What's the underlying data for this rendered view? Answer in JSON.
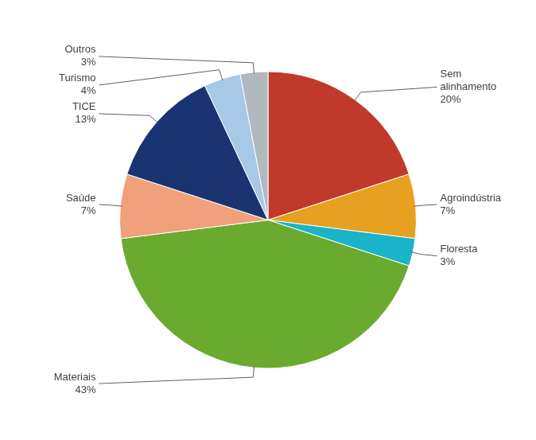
{
  "chart_data": {
    "type": "pie",
    "categories": [
      "Sem\nalinhamento",
      "Agroindústria",
      "Floresta",
      "Materiais",
      "Saúde",
      "TICE",
      "Turismo",
      "Outros"
    ],
    "values": [
      20,
      7,
      3,
      43,
      7,
      13,
      4,
      3
    ],
    "value_labels": [
      "20%",
      "7%",
      "3%",
      "43%",
      "7%",
      "13%",
      "4%",
      "3%"
    ],
    "colors": [
      "#c0392b",
      "#e8a020",
      "#1ab3c8",
      "#6aaa2e",
      "#f0a07a",
      "#1a3472",
      "#a8c8e8",
      "#b0b8c0"
    ],
    "data_labels": true
  }
}
